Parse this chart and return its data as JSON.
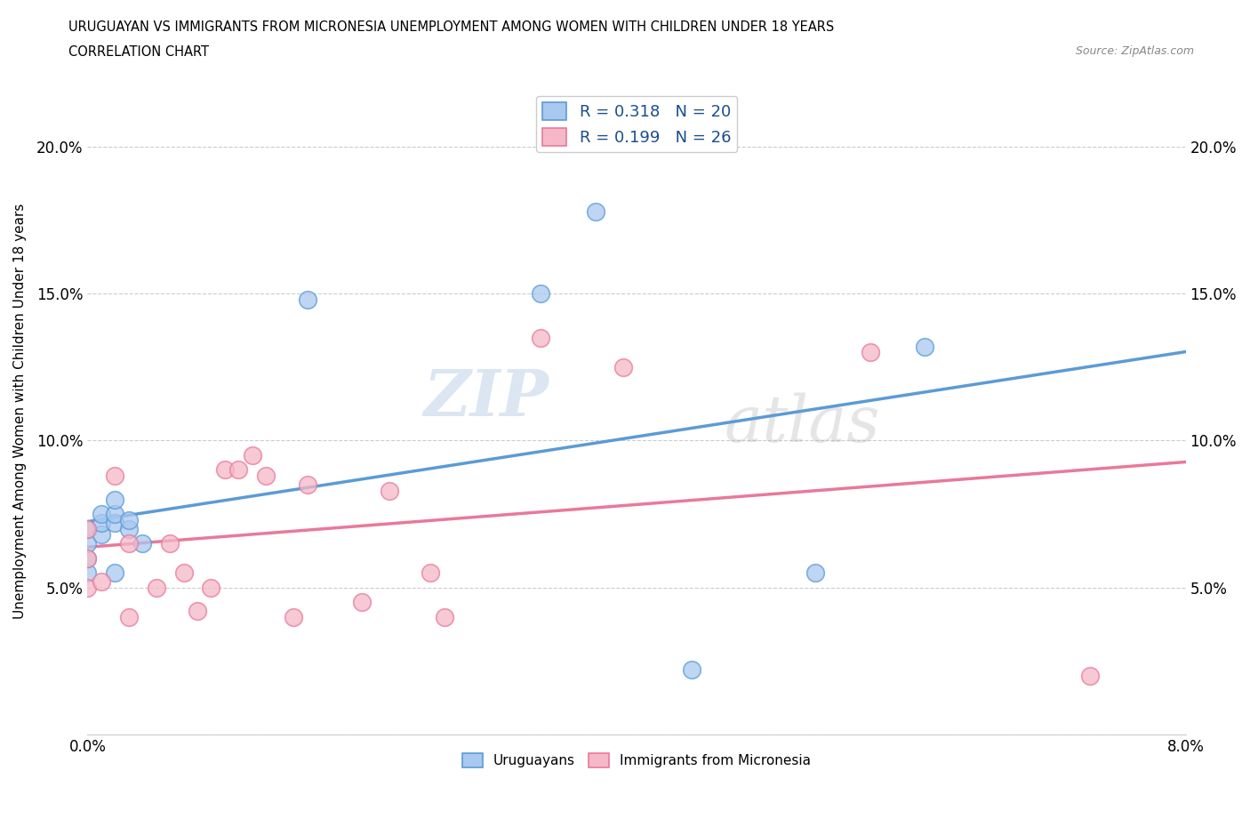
{
  "title_line1": "URUGUAYAN VS IMMIGRANTS FROM MICRONESIA UNEMPLOYMENT AMONG WOMEN WITH CHILDREN UNDER 18 YEARS",
  "title_line2": "CORRELATION CHART",
  "source_text": "Source: ZipAtlas.com",
  "ylabel": "Unemployment Among Women with Children Under 18 years",
  "xlim": [
    0.0,
    0.08
  ],
  "ylim": [
    0.0,
    0.22
  ],
  "x_ticks": [
    0.0,
    0.01,
    0.02,
    0.03,
    0.04,
    0.05,
    0.06,
    0.07,
    0.08
  ],
  "x_tick_labels": [
    "0.0%",
    "",
    "",
    "",
    "",
    "",
    "",
    "",
    "8.0%"
  ],
  "y_ticks": [
    0.0,
    0.05,
    0.1,
    0.15,
    0.2
  ],
  "y_tick_labels": [
    "",
    "5.0%",
    "10.0%",
    "15.0%",
    "20.0%"
  ],
  "blue_R": 0.318,
  "blue_N": 20,
  "pink_R": 0.199,
  "pink_N": 26,
  "blue_color": "#A8C8F0",
  "pink_color": "#F5B8C8",
  "blue_line_color": "#5B9BD5",
  "pink_line_color": "#E8799A",
  "watermark_text": "ZIP",
  "watermark_text2": "atlas",
  "legend_label_blue": "Uruguayans",
  "legend_label_pink": "Immigrants from Micronesia",
  "blue_x": [
    0.0,
    0.0,
    0.0,
    0.0,
    0.001,
    0.001,
    0.001,
    0.002,
    0.002,
    0.002,
    0.002,
    0.003,
    0.003,
    0.004,
    0.016,
    0.033,
    0.037,
    0.044,
    0.053,
    0.061
  ],
  "blue_y": [
    0.055,
    0.06,
    0.065,
    0.07,
    0.068,
    0.072,
    0.075,
    0.072,
    0.075,
    0.08,
    0.055,
    0.07,
    0.073,
    0.065,
    0.148,
    0.15,
    0.178,
    0.022,
    0.055,
    0.132
  ],
  "pink_x": [
    0.0,
    0.0,
    0.0,
    0.001,
    0.002,
    0.003,
    0.003,
    0.005,
    0.006,
    0.007,
    0.008,
    0.009,
    0.01,
    0.011,
    0.012,
    0.013,
    0.015,
    0.016,
    0.02,
    0.022,
    0.025,
    0.026,
    0.033,
    0.039,
    0.057,
    0.073
  ],
  "pink_y": [
    0.05,
    0.06,
    0.07,
    0.052,
    0.088,
    0.04,
    0.065,
    0.05,
    0.065,
    0.055,
    0.042,
    0.05,
    0.09,
    0.09,
    0.095,
    0.088,
    0.04,
    0.085,
    0.045,
    0.083,
    0.055,
    0.04,
    0.135,
    0.125,
    0.13,
    0.02
  ]
}
